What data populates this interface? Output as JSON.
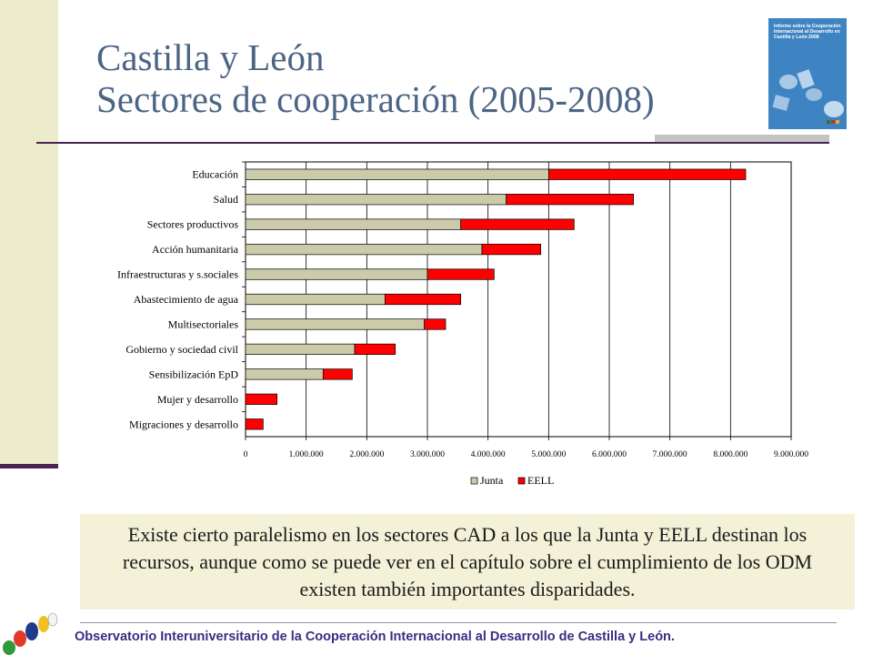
{
  "slide": {
    "title_line1": "Castilla y León",
    "title_line2": "Sectores de cooperación (2005-2008)",
    "body_text": "Existe cierto paralelismo en los sectores CAD a los que la Junta y EELL destinan los recursos, aunque como se puede ver en el capítulo sobre el cumplimiento de los ODM existen también importantes disparidades.",
    "footer": "Observatorio Interuniversitario de la Cooperación Internacional al Desarrollo de Castilla y León.",
    "cover": {
      "title": "Informe sobre la Cooperación Internacional al Desarrollo en Castilla y León 2008"
    }
  },
  "chart_data": {
    "type": "bar",
    "orientation": "horizontal",
    "stacked": true,
    "categories": [
      "Educación",
      "Salud",
      "Sectores productivos",
      "Acción humanitaria",
      "Infraestructuras y s.sociales",
      "Abastecimiento de agua",
      "Multisectoriales",
      "Gobierno y sociedad civil",
      "Sensibilización EpD",
      "Mujer y desarrollo",
      "Migraciones y desarrollo"
    ],
    "series": [
      {
        "name": "Junta",
        "color": "#cbcbaa",
        "values": [
          5000000,
          4300000,
          3550000,
          3900000,
          3000000,
          2300000,
          2950000,
          1800000,
          1280000,
          0,
          0
        ]
      },
      {
        "name": "EELL",
        "color": "#ff0000",
        "values": [
          3250000,
          2100000,
          1870000,
          970000,
          1100000,
          1250000,
          350000,
          670000,
          480000,
          520000,
          290000
        ]
      }
    ],
    "xlim": [
      0,
      9000000
    ],
    "xticks": [
      0,
      1000000,
      2000000,
      3000000,
      4000000,
      5000000,
      6000000,
      7000000,
      8000000,
      9000000
    ],
    "xtick_labels": [
      "0",
      "1.000.000",
      "2.000.000",
      "3.000.000",
      "4.000.000",
      "5.000.000",
      "6.000.000",
      "7.000.000",
      "8.000.000",
      "9.000.000"
    ],
    "grid": "vertical",
    "legend": "bottom"
  }
}
